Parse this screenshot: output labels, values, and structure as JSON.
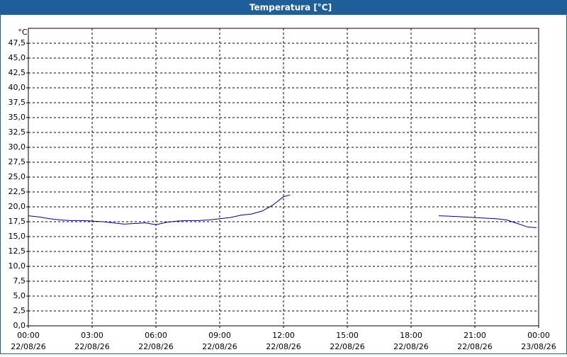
{
  "chart_data": {
    "type": "line",
    "title": "Temperatura [°C]",
    "y_label": "°C",
    "x": [
      0,
      0.5,
      1,
      1.5,
      2,
      2.5,
      3,
      3.5,
      4,
      4.5,
      5,
      5.5,
      6,
      6.5,
      7,
      7.5,
      8,
      8.5,
      9,
      9.5,
      10,
      10.5,
      11,
      11.5,
      12,
      12.3,
      15,
      19.3,
      20,
      20.5,
      21,
      21.5,
      22,
      22.5,
      23,
      23.5,
      23.9
    ],
    "series": [
      {
        "name": "Temperatura",
        "color": "#000080",
        "values": [
          18.5,
          18.3,
          18.0,
          17.8,
          17.7,
          17.7,
          17.6,
          17.5,
          17.3,
          17.1,
          17.2,
          17.3,
          17.0,
          17.4,
          17.6,
          17.7,
          17.7,
          17.8,
          18.0,
          18.2,
          18.6,
          18.8,
          19.3,
          20.3,
          21.7,
          22.0,
          null,
          18.5,
          18.4,
          18.3,
          18.2,
          18.1,
          18.0,
          17.8,
          17.2,
          16.6,
          16.5
        ]
      }
    ],
    "xlim": [
      0,
      24
    ],
    "xticks": [
      {
        "value": 0,
        "label": "00:00"
      },
      {
        "value": 3,
        "label": "03:00"
      },
      {
        "value": 6,
        "label": "06:00"
      },
      {
        "value": 9,
        "label": "09:00"
      },
      {
        "value": 12,
        "label": "12:00"
      },
      {
        "value": 15,
        "label": "15:00"
      },
      {
        "value": 18,
        "label": "18:00"
      },
      {
        "value": 21,
        "label": "21:00"
      },
      {
        "value": 24,
        "label": "00:00"
      }
    ],
    "xtick_dates": [
      "22/08/26",
      "22/08/26",
      "22/08/26",
      "22/08/26",
      "22/08/26",
      "22/08/26",
      "22/08/26",
      "22/08/26",
      "23/08/26"
    ],
    "ylim": [
      0,
      50
    ],
    "yticks": [
      {
        "value": 0,
        "label": "0,0"
      },
      {
        "value": 2.5,
        "label": "2,5"
      },
      {
        "value": 5,
        "label": "5,0"
      },
      {
        "value": 7.5,
        "label": "7,5"
      },
      {
        "value": 10,
        "label": "10,0"
      },
      {
        "value": 12.5,
        "label": "12,5"
      },
      {
        "value": 15,
        "label": "15,0"
      },
      {
        "value": 17.5,
        "label": "17,5"
      },
      {
        "value": 20,
        "label": "20,0"
      },
      {
        "value": 22.5,
        "label": "22,5"
      },
      {
        "value": 25,
        "label": "25,0"
      },
      {
        "value": 27.5,
        "label": "27,5"
      },
      {
        "value": 30,
        "label": "30,0"
      },
      {
        "value": 32.5,
        "label": "32,5"
      },
      {
        "value": 35,
        "label": "35,0"
      },
      {
        "value": 37.5,
        "label": "37,5"
      },
      {
        "value": 40,
        "label": "40,0"
      },
      {
        "value": 42.5,
        "label": "42,5"
      },
      {
        "value": 45,
        "label": "45,0"
      },
      {
        "value": 47.5,
        "label": "47,5"
      }
    ],
    "grid": true
  }
}
